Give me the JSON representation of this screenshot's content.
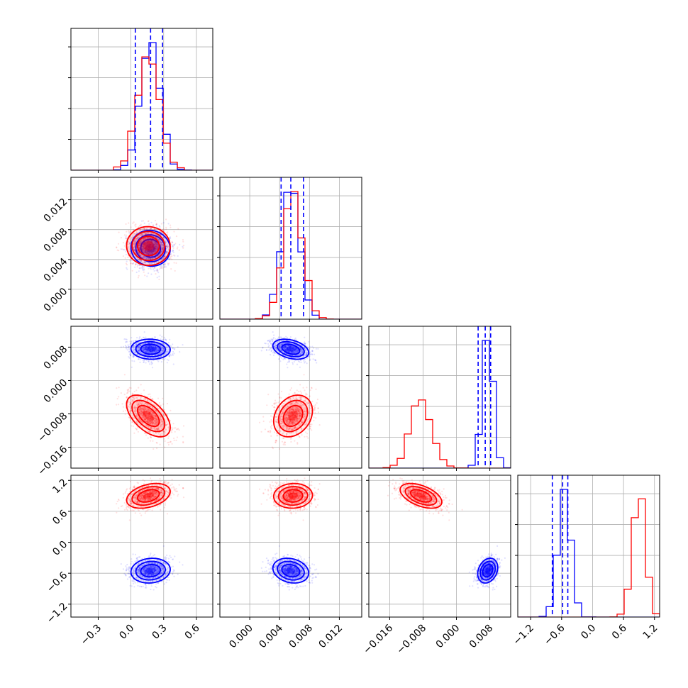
{
  "chart_data": {
    "type": "corner",
    "grid": true,
    "colors": {
      "series_a": "#0000ff",
      "series_b": "#ff0000",
      "quantile_line": "#0000ff"
    },
    "parameters": [
      {
        "range": [
          -0.55,
          0.75
        ],
        "ticks": [
          -0.3,
          0.0,
          0.3,
          0.6
        ],
        "tick_labels": [
          "−0.3",
          "0.0",
          "0.3",
          "0.6"
        ]
      },
      {
        "range": [
          -0.004,
          0.015
        ],
        "ticks": [
          0.0,
          0.004,
          0.008,
          0.012
        ],
        "tick_labels": [
          "0.000",
          "0.004",
          "0.008",
          "0.012"
        ]
      },
      {
        "range": [
          -0.021,
          0.013
        ],
        "ticks": [
          -0.016,
          -0.008,
          0.0,
          0.008
        ],
        "tick_labels": [
          "−0.016",
          "−0.008",
          "0.000",
          "0.008"
        ]
      },
      {
        "range": [
          -1.45,
          1.3
        ],
        "ticks": [
          -1.2,
          -0.6,
          0.0,
          0.6,
          1.2
        ],
        "tick_labels": [
          "−1.2",
          "−0.6",
          "0.0",
          "0.6",
          "1.2"
        ]
      }
    ],
    "series": [
      {
        "color": "#0000ff",
        "mean": [
          0.18,
          0.0055,
          0.0075,
          -0.55
        ],
        "sd": [
          0.09,
          0.0012,
          0.0012,
          0.12
        ],
        "corr": {
          "1_0": -0.05,
          "2_0": -0.05,
          "2_1": -0.35,
          "3_0": 0.1,
          "3_1": -0.2,
          "3_2": 0.25
        },
        "quantiles": [
          [
            0.04,
            0.18,
            0.29
          ],
          [
            0.0042,
            0.0055,
            0.0072
          ],
          [
            0.0052,
            0.0069,
            0.0082
          ],
          [
            -0.78,
            -0.58,
            -0.48
          ]
        ]
      },
      {
        "color": "#ff0000",
        "mean": [
          0.16,
          0.0058,
          -0.0085,
          0.9
        ],
        "sd": [
          0.1,
          0.0013,
          0.0025,
          0.12
        ],
        "corr": {
          "1_0": -0.02,
          "2_0": -0.55,
          "2_1": 0.25,
          "3_0": 0.35,
          "3_1": 0.05,
          "3_2": -0.5
        },
        "quantiles": null
      }
    ]
  }
}
